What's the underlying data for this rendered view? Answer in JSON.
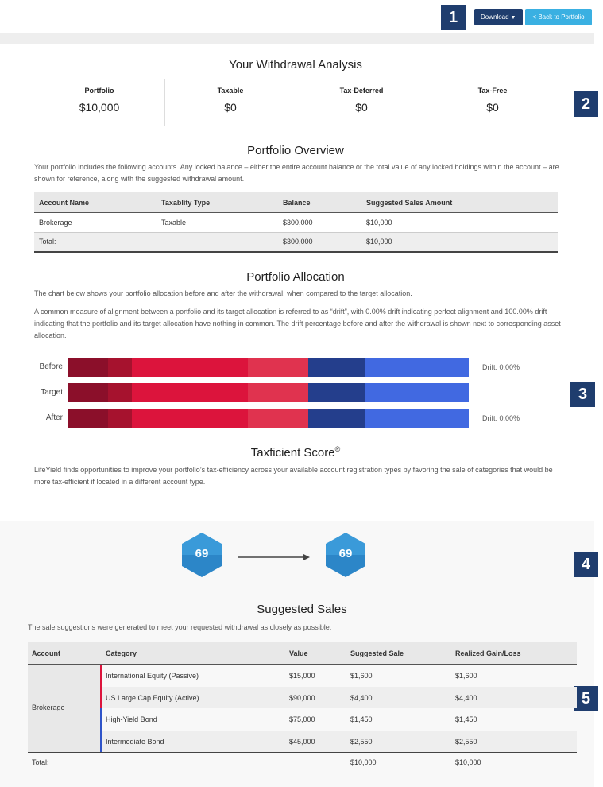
{
  "header": {
    "badge": "1",
    "download": "Download",
    "back": "< Back to Portfolio"
  },
  "analysis": {
    "title": "Your Withdrawal Analysis",
    "badge": "2",
    "stats": [
      {
        "label": "Portfolio",
        "value": "$10,000"
      },
      {
        "label": "Taxable",
        "value": "$0"
      },
      {
        "label": "Tax-Deferred",
        "value": "$0"
      },
      {
        "label": "Tax-Free",
        "value": "$0"
      }
    ]
  },
  "overview": {
    "title": "Portfolio Overview",
    "text": "Your portfolio includes the following accounts. Any locked balance – either the entire account balance or the total value of any locked holdings within the account – are shown for reference, along with the suggested withdrawal amount.",
    "columns": [
      "Account Name",
      "Taxablity Type",
      "Balance",
      "Suggested Sales Amount"
    ],
    "rows": [
      [
        "Brokerage",
        "Taxable",
        "$300,000",
        "$10,000"
      ]
    ],
    "total": {
      "label": "Total:",
      "balance": "$300,000",
      "sales": "$10,000"
    }
  },
  "allocation": {
    "title": "Portfolio Allocation",
    "badge": "3",
    "paragraphs": [
      "The chart below shows your portfolio allocation before and after the withdrawal, when compared to the target allocation.",
      "A common measure of alignment between a portfolio and its target allocation is referred to as “drift”, with 0.00% drift indicating perfect alignment and 100.00% drift indicating that the portfolio and its target allocation have nothing in common. The drift percentage before and after the withdrawal is shown next to corresponding asset allocation."
    ],
    "colors": [
      "#8b0f2a",
      "#a6122e",
      "#dc143c",
      "#e0334f",
      "#243e8c",
      "#4169e1"
    ],
    "bars": [
      {
        "label": "Before",
        "segments": [
          10,
          6,
          29,
          15,
          14,
          26
        ],
        "drift": "Drift: 0.00%"
      },
      {
        "label": "Target",
        "segments": [
          10,
          6,
          29,
          15,
          14,
          26
        ]
      },
      {
        "label": "After",
        "segments": [
          10,
          6,
          29,
          15,
          14,
          26
        ],
        "drift": "Drift: 0.00%"
      }
    ]
  },
  "taxficient": {
    "title": "Taxficient Score",
    "mark": "®",
    "badge": "4",
    "text": "LifeYield finds opportunities to improve your portfolio’s tax-efficiency across your available account registration types by favoring the sale of categories that would be more tax-efficient if located in a different account type.",
    "scores": [
      "69",
      "69"
    ]
  },
  "sales": {
    "title": "Suggested Sales",
    "badge": "5",
    "text": "The sale suggestions were generated to meet your requested withdrawal as closely as possible.",
    "columns": [
      "Account",
      "Category",
      "Value",
      "Suggested Sale",
      "Realized Gain/Loss"
    ],
    "account": "Brokerage",
    "rows": [
      {
        "category": "International Equity (Passive)",
        "value": "$15,000",
        "sale": "$1,600",
        "gain": "$1,600",
        "color": "#dc143c"
      },
      {
        "category": "US Large Cap Equity (Active)",
        "value": "$90,000",
        "sale": "$4,400",
        "gain": "$4,400",
        "color": "#dc143c"
      },
      {
        "category": "High-Yield Bond",
        "value": "$75,000",
        "sale": "$1,450",
        "gain": "$1,450",
        "color": "#2f54c9"
      },
      {
        "category": "Intermediate Bond",
        "value": "$45,000",
        "sale": "$2,550",
        "gain": "$2,550",
        "color": "#2f54c9"
      }
    ],
    "total": {
      "label": "Total:",
      "sale": "$10,000",
      "gain": "$10,000"
    }
  }
}
